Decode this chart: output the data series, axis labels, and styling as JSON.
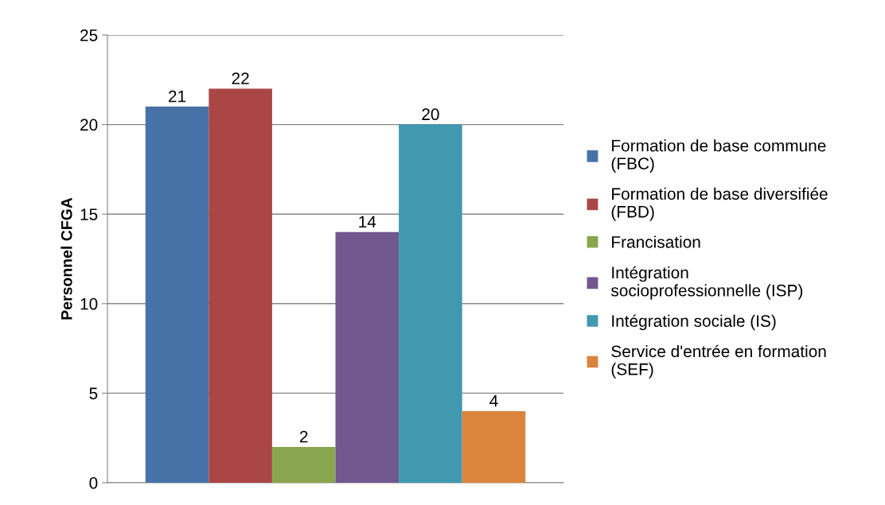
{
  "chart_data": {
    "type": "bar",
    "ylabel": "Personnel CFGA",
    "categories": [
      null
    ],
    "series": [
      {
        "name": "Formation de base commune (FBC)",
        "color": "#4672a8",
        "values": [
          21
        ]
      },
      {
        "name": "Formation de base diversifiée (FBD)",
        "color": "#aa4744",
        "values": [
          22
        ]
      },
      {
        "name": "Francisation",
        "color": "#89a54e",
        "values": [
          2
        ]
      },
      {
        "name": "Intégration socioprofessionnelle (ISP)",
        "color": "#71588f",
        "values": [
          14
        ]
      },
      {
        "name": "Intégration sociale (IS)",
        "color": "#4198af",
        "values": [
          20
        ]
      },
      {
        "name": "Service d'entrée en formation (SEF)",
        "color": "#db843d",
        "values": [
          4
        ]
      }
    ],
    "ylim": [
      0,
      25
    ],
    "yticks": [
      0,
      5,
      10,
      15,
      20,
      25
    ],
    "grid": "y",
    "legend": "right",
    "data_labels": true
  }
}
